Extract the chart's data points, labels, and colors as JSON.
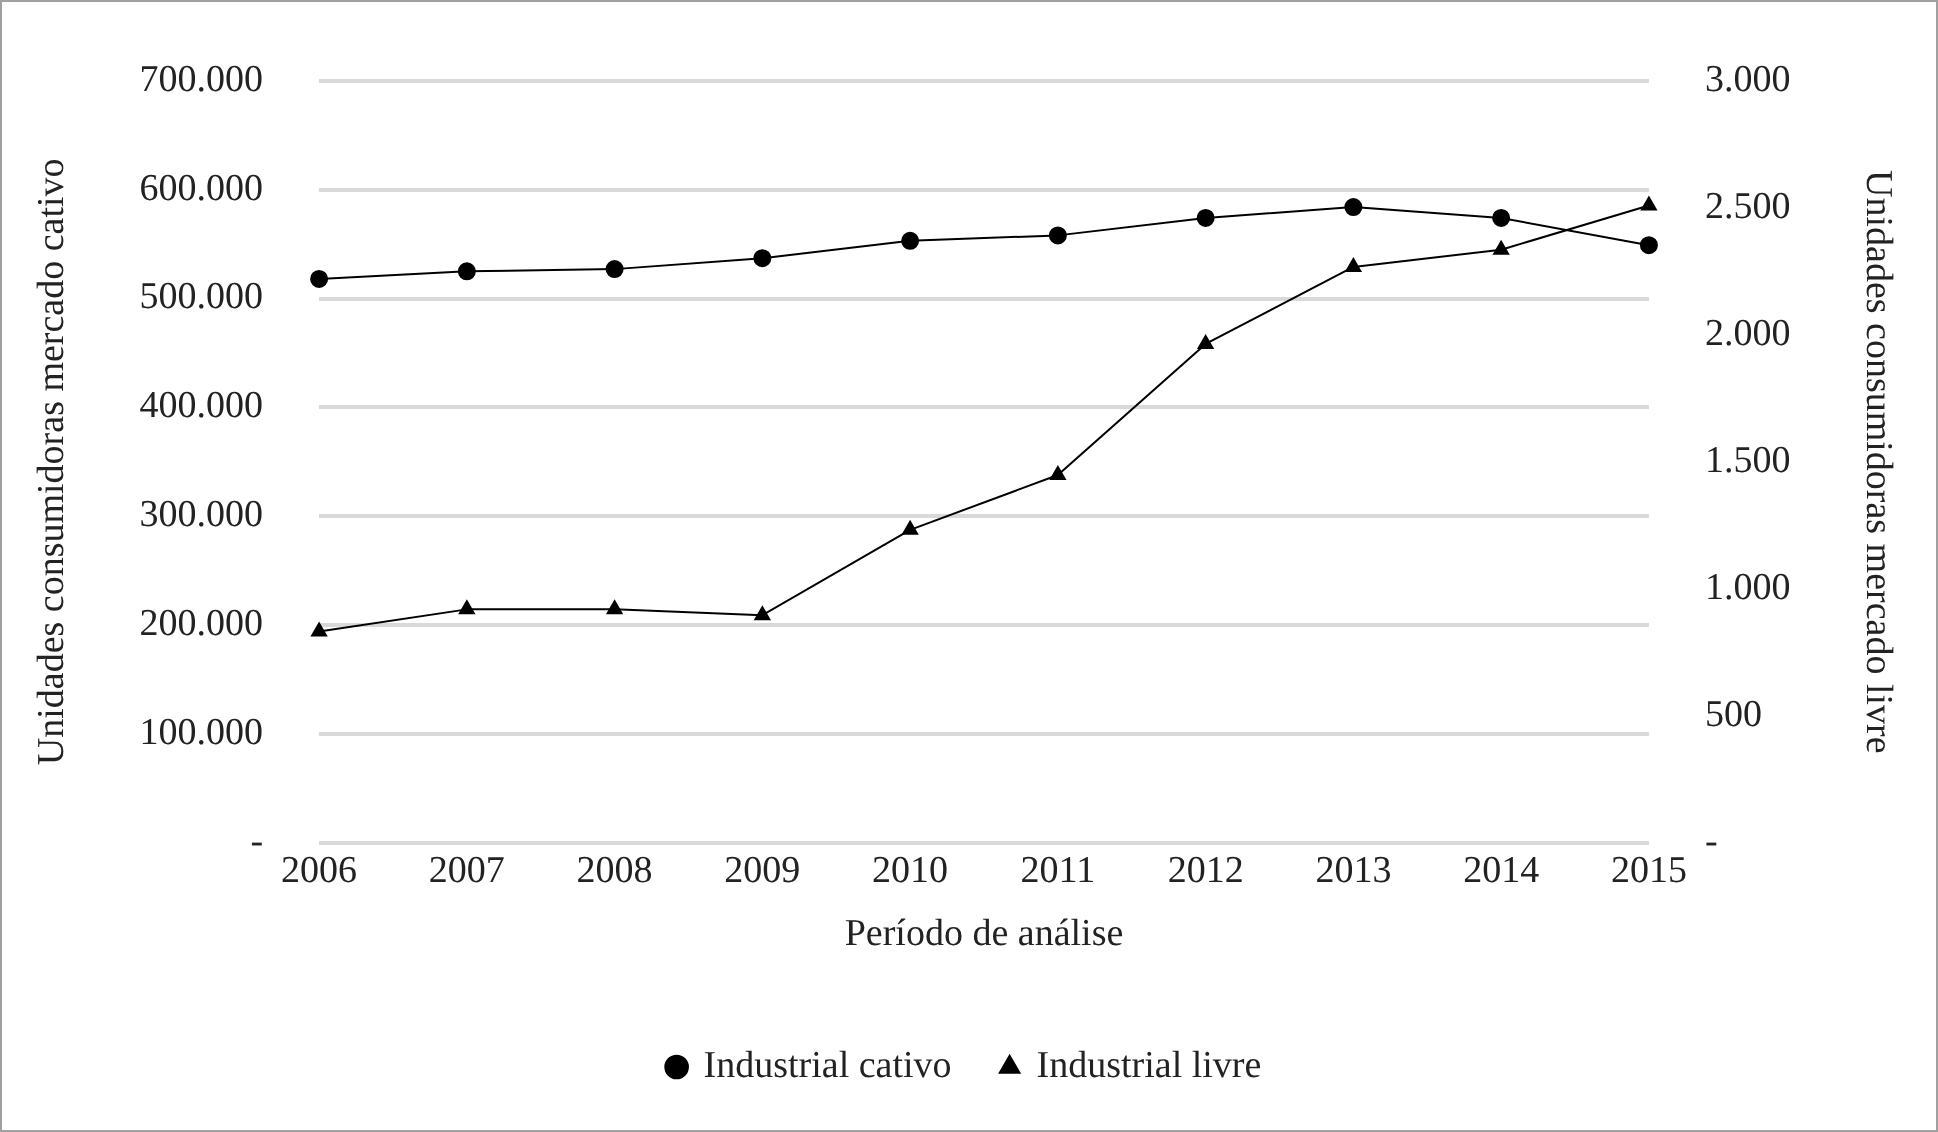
{
  "chart_data": {
    "type": "line",
    "xlabel": "Período de análise",
    "ylabel": "Unidades consumidoras mercado cativo",
    "y2label": "Unidades consumidoras mercado livre",
    "categories": [
      "2006",
      "2007",
      "2008",
      "2009",
      "2010",
      "2011",
      "2012",
      "2013",
      "2014",
      "2015"
    ],
    "series": [
      {
        "name": "Industrial cativo",
        "color": "#000000",
        "marker": "circle",
        "values": [
          518000,
          525000,
          527000,
          537000,
          553000,
          558000,
          574000,
          584000,
          574000,
          549000
        ]
      },
      {
        "name": "Industrial livre",
        "color": "#000000",
        "marker": "triangle",
        "axis": "y2",
        "values": [
          832,
          919,
          919,
          896,
          1232,
          1448,
          1964,
          2267,
          2335,
          2509
        ]
      }
    ],
    "ylim": [
      0,
      700000
    ],
    "yticks": [
      {
        "value": 0,
        "label": "-"
      },
      {
        "value": 100000,
        "label": "100.000"
      },
      {
        "value": 200000,
        "label": "200.000"
      },
      {
        "value": 300000,
        "label": "300.000"
      },
      {
        "value": 400000,
        "label": "400.000"
      },
      {
        "value": 500000,
        "label": "500.000"
      },
      {
        "value": 600000,
        "label": "600.000"
      },
      {
        "value": 700000,
        "label": "700.000"
      }
    ],
    "y2lim": [
      0,
      3000
    ],
    "y2ticks": [
      {
        "value": 0,
        "label": "-"
      },
      500,
      {
        "value": 1000,
        "label": "1.000"
      },
      {
        "value": 1500,
        "label": "1.500"
      },
      {
        "value": 2000,
        "label": "2.000"
      },
      {
        "value": 2500,
        "label": "2.500"
      },
      {
        "value": 3000,
        "label": "3.000"
      }
    ],
    "grid": "y",
    "legend": "bottom",
    "line_style": "solid"
  }
}
